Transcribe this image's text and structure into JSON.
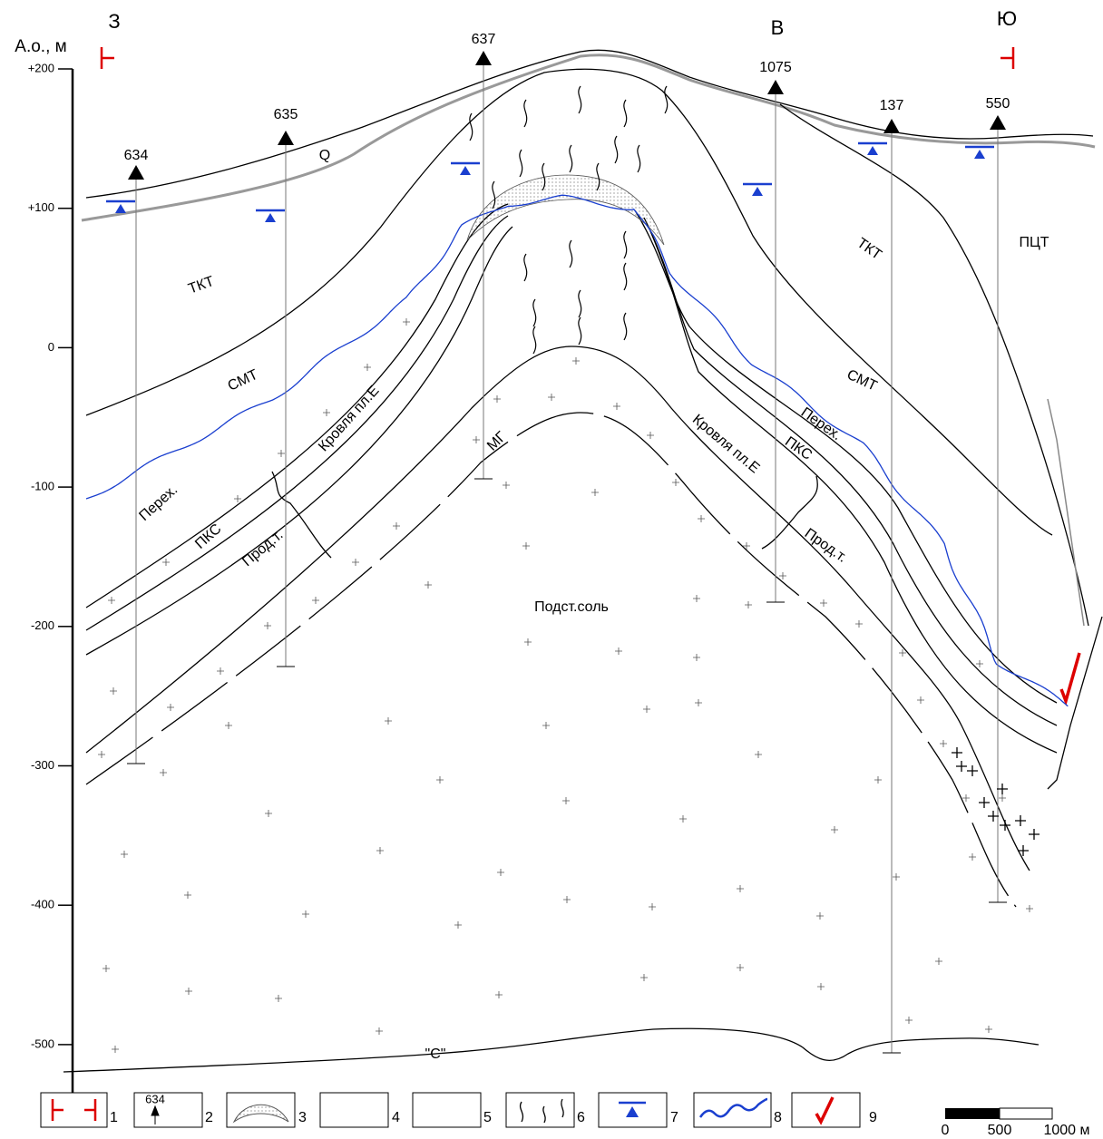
{
  "header": {
    "directions": [
      "З",
      "В",
      "Ю"
    ],
    "axis_title": "А.о., м"
  },
  "axis": {
    "ticks": [
      "+200",
      "+100",
      "0",
      "-100",
      "-200",
      "-300",
      "-400",
      "-500"
    ]
  },
  "wells": [
    "634",
    "635",
    "637",
    "1075",
    "137",
    "550"
  ],
  "units": [
    "Q",
    "ТКТ",
    "СМТ",
    "ТКТ",
    "СМТ",
    "ПЦТ",
    "Перех.",
    "ПКС",
    "Кровля пл.Е",
    "Прод.т.",
    "МГ",
    "Кровля пл.Е",
    "Перех.",
    "ПКС",
    "Прод.т.",
    "Подст.соль",
    "\"С\""
  ],
  "legend": {
    "items": [
      "1",
      "2",
      "3",
      "4",
      "5",
      "6",
      "7",
      "8",
      "9"
    ],
    "sample_well": "634"
  },
  "scale": {
    "labels": [
      "0",
      "500",
      "1000 м"
    ]
  }
}
